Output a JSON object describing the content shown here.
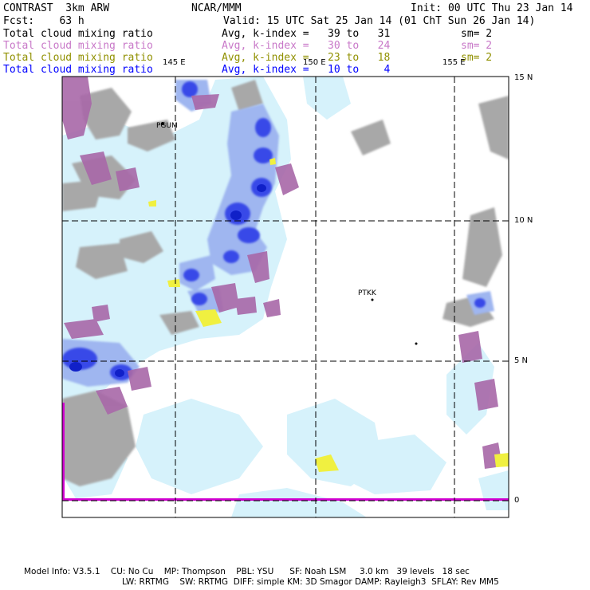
{
  "header": {
    "model": "CONTRAST  3km ARW",
    "center": "NCAR/MMM",
    "init": "Init: 00 UTC Thu 23 Jan 14",
    "fcst": "Fcst:    63 h",
    "valid": "Valid: 15 UTC Sat 25 Jan 14 (01 ChT Sun 26 Jan 14)"
  },
  "legend": [
    {
      "name": "Total cloud mixing ratio",
      "range": "Avg, k-index =   39 to   31",
      "sm": "sm= 2",
      "color": "#000000"
    },
    {
      "name": "Total cloud mixing ratio",
      "range": "Avg, k-index =   30 to   24",
      "sm": "sm= 2",
      "color": "#c878c8"
    },
    {
      "name": "Total cloud mixing ratio",
      "range": "Avg, k-index =   23 to   18",
      "sm": "sm= 2",
      "color": "#909000"
    },
    {
      "name": "Total cloud mixing ratio",
      "range": "Avg, k-index =   10 to    4",
      "sm": "sm= 2",
      "color": "#0000ff"
    }
  ],
  "map": {
    "lon_labels": [
      "145 E",
      "150 E",
      "155 E"
    ],
    "lat_labels": [
      "15 N",
      "10 N",
      "5 N",
      "0"
    ],
    "stations": [
      "PGUM",
      "PTKK"
    ],
    "colors": {
      "gray": "#a8a8a8",
      "purple": "#a868a8",
      "light_blue": "#d6f2fb",
      "mid_blue": "#9fb6f0",
      "blue": "#3848e8",
      "dark_blue": "#1020c8",
      "yellow": "#f0f040",
      "magenta": "#d000d0"
    }
  },
  "footer": {
    "line1": "Model Info: V3.5.1    CU: No Cu    MP: Thompson    PBL: YSU      SF: Noah LSM     3.0 km   39 levels   18 sec",
    "line2": "LW: RRTMG    SW: RRTMG  DIFF: simple KM: 3D Smagor DAMP: Rayleigh3  SFLAY: Rev MM5"
  }
}
